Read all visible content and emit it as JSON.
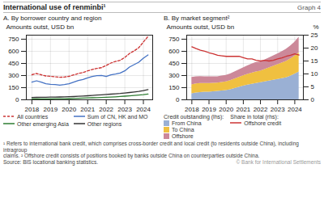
{
  "title": "International use of renminbi¹",
  "subtitle": "Graph 4",
  "annotations": [
    "¹ Refers to international bank credit, which comprises cross-border credit and local credit (to residents outside China), including intragroup",
    "claims.  ² Offshore credit consists of positions booked by banks outside China on counterparties outside China.",
    "Source: BIS locational banking statistics.",
    "© Bank for International Settlements"
  ],
  "chart_data": [
    {
      "type": "line",
      "title": "A. By borrower country and region",
      "y_label": "Amounts outst, USD bn",
      "x": [
        2018.0,
        2018.25,
        2018.5,
        2018.75,
        2019.0,
        2019.25,
        2019.5,
        2019.75,
        2020.0,
        2020.25,
        2020.5,
        2020.75,
        2021.0,
        2021.25,
        2021.5,
        2021.75,
        2022.0,
        2022.25,
        2022.5,
        2022.75,
        2023.0,
        2023.25,
        2023.5,
        2023.75,
        2024.0,
        2024.25
      ],
      "series": [
        {
          "name": "All countries",
          "color": "#cc3333",
          "line_style": "dashed",
          "values": [
            310,
            325,
            310,
            295,
            290,
            285,
            278,
            282,
            290,
            308,
            325,
            338,
            358,
            375,
            388,
            398,
            425,
            455,
            475,
            488,
            525,
            572,
            605,
            645,
            715,
            785
          ]
        },
        {
          "name": "Sum of CN, HK and MO",
          "color": "#4472c4",
          "line_style": "solid",
          "values": [
            218,
            235,
            218,
            198,
            192,
            188,
            182,
            188,
            198,
            218,
            238,
            252,
            272,
            288,
            298,
            302,
            288,
            308,
            318,
            332,
            358,
            405,
            435,
            465,
            515,
            555
          ]
        },
        {
          "name": "Other emerging Asia",
          "color": "#2e7d32",
          "line_style": "solid",
          "values": [
            10,
            11,
            11,
            12,
            12,
            13,
            13,
            14,
            15,
            17,
            19,
            21,
            23,
            25,
            27,
            29,
            31,
            34,
            37,
            41,
            45,
            49,
            54,
            59,
            64,
            71
          ]
        },
        {
          "name": "Other regions",
          "color": "#333333",
          "line_style": "solid",
          "values": [
            28,
            30,
            31,
            32,
            33,
            34,
            35,
            36,
            38,
            40,
            43,
            46,
            50,
            54,
            58,
            62,
            66,
            70,
            74,
            78,
            84,
            90,
            96,
            103,
            113,
            126
          ]
        }
      ],
      "xlim": [
        2017.7,
        2024.5
      ],
      "xticks": [
        2018,
        2019,
        2020,
        2021,
        2022,
        2023,
        2024
      ],
      "ylim": [
        0,
        800
      ],
      "yticks": [
        0,
        150,
        300,
        450,
        600,
        750
      ],
      "grid": true,
      "legend": "bottom"
    },
    {
      "type": "area",
      "title": "B. By market segment²",
      "y_label": "Amounts outst, USD bn",
      "y2_label": "%",
      "annotations": [
        "Credit outstanding (lhs):",
        "Share in total (rhs):"
      ],
      "x": [
        2018.0,
        2018.25,
        2018.5,
        2018.75,
        2019.0,
        2019.25,
        2019.5,
        2019.75,
        2020.0,
        2020.25,
        2020.5,
        2020.75,
        2021.0,
        2021.25,
        2021.5,
        2021.75,
        2022.0,
        2022.25,
        2022.5,
        2022.75,
        2023.0,
        2023.25,
        2023.5,
        2023.75,
        2024.0,
        2024.25
      ],
      "series": [
        {
          "name": "From China",
          "color": "#9ab0d4",
          "type": "area",
          "values": [
            75,
            85,
            90,
            95,
            95,
            100,
            105,
            110,
            115,
            125,
            140,
            155,
            170,
            182,
            192,
            202,
            212,
            222,
            232,
            242,
            252,
            262,
            272,
            292,
            318,
            345
          ]
        },
        {
          "name": "To China",
          "color": "#f0c040",
          "type": "area",
          "values": [
            110,
            112,
            112,
            108,
            108,
            106,
            103,
            106,
            108,
            112,
            118,
            123,
            128,
            133,
            138,
            143,
            143,
            153,
            163,
            173,
            182,
            192,
            202,
            212,
            222,
            237
          ]
        },
        {
          "name": "Offshore",
          "color": "#cc8899",
          "type": "area",
          "values": [
            93,
            88,
            86,
            83,
            81,
            78,
            76,
            78,
            80,
            83,
            88,
            93,
            98,
            106,
            112,
            118,
            112,
            118,
            122,
            128,
            133,
            142,
            152,
            162,
            172,
            192
          ]
        },
        {
          "name": "Offshore credit",
          "color": "#cc3333",
          "type": "line",
          "axis": "y2",
          "line_style": "solid",
          "values": [
            20.5,
            19.8,
            19.2,
            18.8,
            18.2,
            17.8,
            17.2,
            17.0,
            16.8,
            16.8,
            16.8,
            16.8,
            16.3,
            15.8,
            15.8,
            15.3,
            15.0,
            15.3,
            15.0,
            15.3,
            15.8,
            16.2,
            16.8,
            17.2,
            17.8,
            17.3
          ]
        }
      ],
      "stacked": true,
      "xlim": [
        2017.7,
        2024.5
      ],
      "xticks": [
        2018,
        2019,
        2020,
        2021,
        2022,
        2023,
        2024
      ],
      "ylim": [
        0,
        800
      ],
      "yticks": [
        0,
        150,
        300,
        450,
        600,
        750
      ],
      "y2lim": [
        0,
        25
      ],
      "y2ticks": [
        0,
        5,
        10,
        15,
        20,
        25
      ],
      "grid": true,
      "legend": "bottom"
    }
  ]
}
